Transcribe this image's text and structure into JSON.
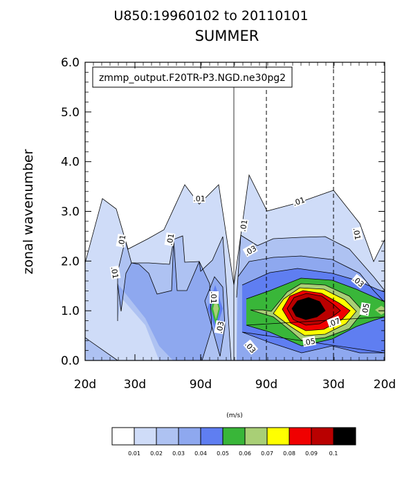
{
  "chart_data": {
    "type": "contour",
    "title": "U850:19960102 to 20110101",
    "subtitle": "SUMMER",
    "ylabel": "zonal wavenumber",
    "annotation": "zmmp_output.F20TR-P3.NGD.ne30pg2",
    "units_label": "(m/s)",
    "ylim": [
      0.0,
      6.0
    ],
    "y_ticks": [
      "0.0",
      "1.0",
      "2.0",
      "3.0",
      "4.0",
      "5.0",
      "6.0"
    ],
    "x_tick_labels": [
      "20d",
      "30d",
      "90d",
      "90d",
      "30d",
      "20d"
    ],
    "contour_levels": [
      "0.01",
      "0.02",
      "0.03",
      "0.04",
      "0.05",
      "0.06",
      "0.07",
      "0.08",
      "0.09",
      "0.1"
    ],
    "contour_line_labels": [
      ".01",
      ".01",
      ".01",
      ".01",
      ".01",
      ".01",
      ".01",
      ".01",
      ".03",
      ".03",
      ".03",
      ".03",
      ".05",
      ".05",
      ".07"
    ],
    "level_colors": [
      "#ffffff",
      "#cfdcf8",
      "#aec2f2",
      "#8ea8ef",
      "#5f7ef1",
      "#39b639",
      "#a9cf76",
      "#ffff00",
      "#f00000",
      "#b90000",
      "#000000"
    ],
    "lines_dashed": [
      "90d",
      "30d"
    ],
    "line_solid": "zero frequency"
  }
}
